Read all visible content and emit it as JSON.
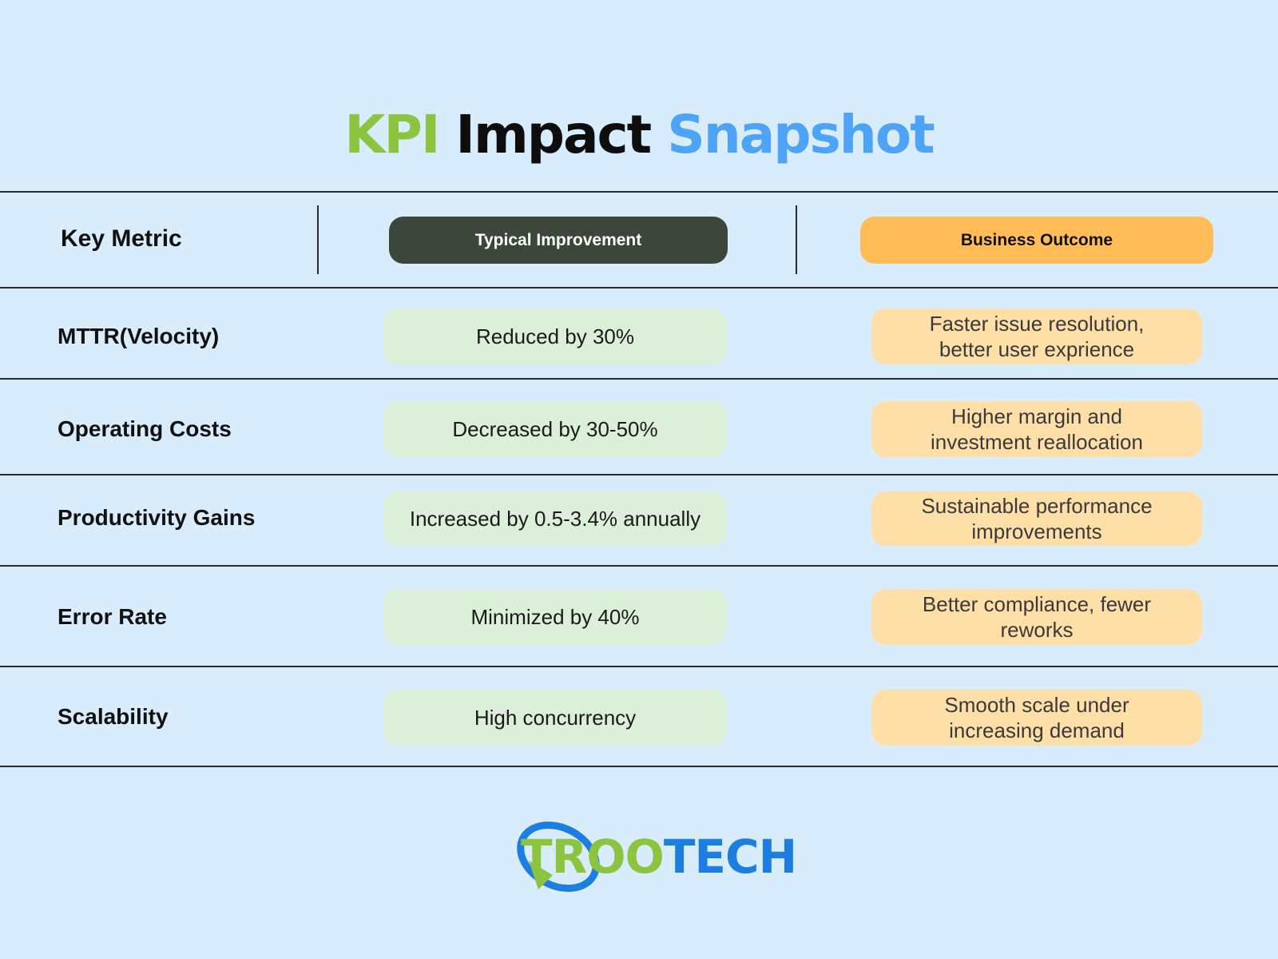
{
  "title": {
    "part1": "KPI",
    "part2": "Impact",
    "part3": "Snapshot"
  },
  "header": {
    "key_metric": "Key Metric",
    "typical_improvement": "Typical Improvement",
    "business_outcome": "Business Outcome"
  },
  "rows": [
    {
      "metric": "MTTR(Velocity)",
      "improvement": "Reduced by 30%",
      "outcome": "Faster issue resolution, better user exprience"
    },
    {
      "metric": "Operating Costs",
      "improvement": "Decreased by 30-50%",
      "outcome": "Higher margin and investment reallocation"
    },
    {
      "metric": "Productivity Gains",
      "improvement": "Increased by 0.5-3.4% annually",
      "outcome": "Sustainable performance improvements"
    },
    {
      "metric": "Error Rate",
      "improvement": "Minimized by 40%",
      "outcome": "Better compliance, fewer reworks"
    },
    {
      "metric": "Scalability",
      "improvement": "High concurrency",
      "outcome": "Smooth scale under increasing demand"
    }
  ],
  "logo": {
    "part1": "TR",
    "part2": "OO",
    "part3": "TECH"
  },
  "colors": {
    "background": "#d8ecfc",
    "title_green": "#8bc53f",
    "title_blue": "#4da3f5",
    "header_dark": "#3d463b",
    "header_orange": "#ffbc57",
    "cell_green": "#dcefd9",
    "cell_orange": "#ffdfa8",
    "logo_blue": "#1c7fe0"
  }
}
